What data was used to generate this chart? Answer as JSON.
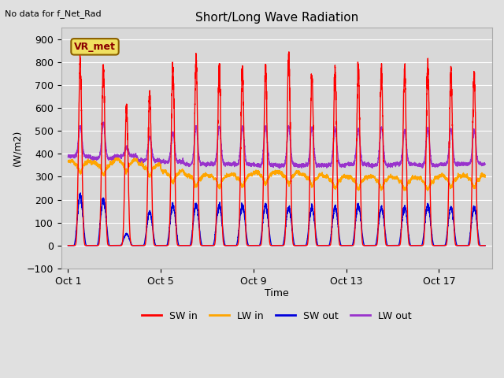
{
  "title": "Short/Long Wave Radiation",
  "xlabel": "Time",
  "ylabel": "(W/m2)",
  "top_label": "No data for f_Net_Rad",
  "station_label": "VR_met",
  "ylim": [
    -100,
    950
  ],
  "yticks": [
    -100,
    0,
    100,
    200,
    300,
    400,
    500,
    600,
    700,
    800,
    900
  ],
  "xtick_labels": [
    "Oct 1",
    "Oct 5",
    "Oct 9",
    "Oct 13",
    "Oct 17"
  ],
  "xtick_positions": [
    0,
    4,
    8,
    12,
    16
  ],
  "bg_color": "#e0e0e0",
  "plot_bg_color": "#d8d8d8",
  "sw_in_color": "#ff0000",
  "lw_in_color": "#ffa500",
  "sw_out_color": "#0000dd",
  "lw_out_color": "#9933cc",
  "legend_labels": [
    "SW in",
    "LW in",
    "SW out",
    "LW out"
  ],
  "n_days": 18,
  "dt_hours": 0.1
}
